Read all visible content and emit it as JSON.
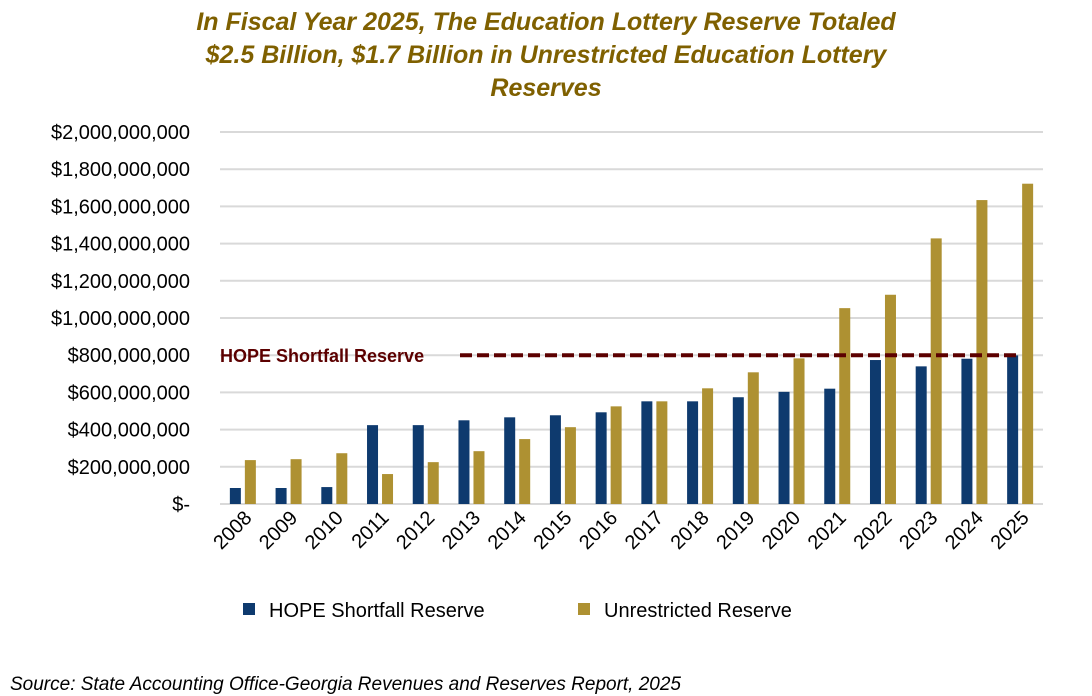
{
  "chart_data": {
    "type": "bar",
    "title_lines": [
      "In Fiscal Year 2025, The Education Lottery Reserve Totaled",
      "$2.5 Billion, $1.7 Billion in Unrestricted Education Lottery",
      "Reserves"
    ],
    "categories": [
      "2008",
      "2009",
      "2010",
      "2011",
      "2012",
      "2013",
      "2014",
      "2015",
      "2016",
      "2017",
      "2018",
      "2019",
      "2020",
      "2021",
      "2022",
      "2023",
      "2024",
      "2025"
    ],
    "series": [
      {
        "name": "HOPE Shortfall Reserve",
        "color": "#0E3A6E",
        "values": [
          86000000,
          86000000,
          91000000,
          424000000,
          424000000,
          450000000,
          466000000,
          477000000,
          493000000,
          552000000,
          552000000,
          574000000,
          603000000,
          620000000,
          774000000,
          740000000,
          781000000,
          799000000
        ]
      },
      {
        "name": "Unrestricted Reserve",
        "color": "#AE9132",
        "values": [
          236000000,
          241000000,
          273000000,
          161000000,
          225000000,
          284000000,
          349000000,
          413000000,
          525000000,
          552000000,
          622000000,
          708000000,
          783000000,
          1053000000,
          1125000000,
          1428000000,
          1634000000,
          1722000000
        ]
      }
    ],
    "ylim": [
      0,
      2000000000
    ],
    "yticks": [
      0,
      200000000,
      400000000,
      600000000,
      800000000,
      1000000000,
      1200000000,
      1400000000,
      1600000000,
      1800000000,
      2000000000
    ],
    "ytick_labels": [
      "$-",
      "$200,000,000",
      "$400,000,000",
      "$600,000,000",
      "$800,000,000",
      "$1,000,000,000",
      "$1,200,000,000",
      "$1,400,000,000",
      "$1,600,000,000",
      "$1,800,000,000",
      "$2,000,000,000"
    ],
    "grid": true,
    "legend_position": "bottom",
    "reference_line": {
      "label": "HOPE Shortfall Reserve",
      "value": 800000000,
      "color": "#5C0000"
    },
    "xlabel": "",
    "ylabel": ""
  },
  "source": "Source: State Accounting Office-Georgia Revenues and Reserves Report, 2025"
}
